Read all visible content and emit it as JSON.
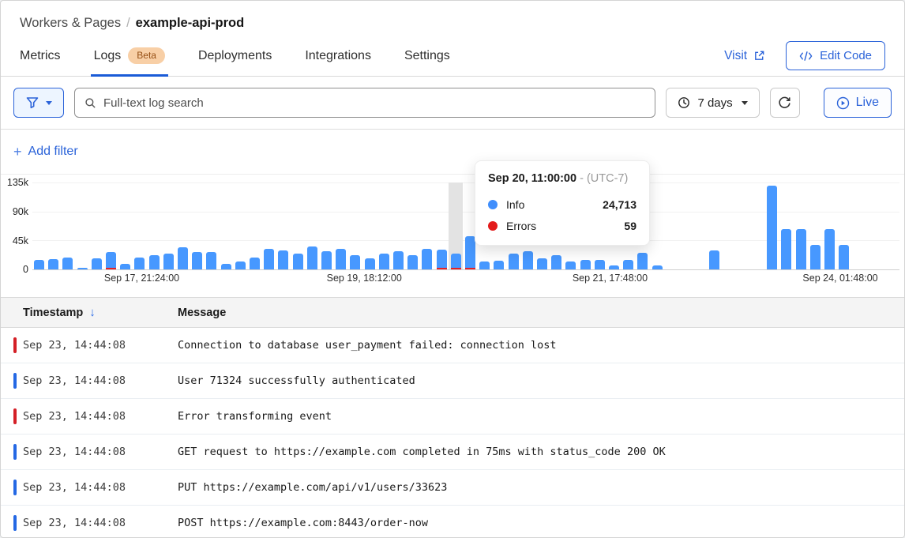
{
  "breadcrumb": {
    "parent": "Workers & Pages",
    "separator": "/",
    "current": "example-api-prod"
  },
  "tabs": {
    "items": [
      {
        "label": "Metrics",
        "active": false
      },
      {
        "label": "Logs",
        "badge": "Beta",
        "active": true
      },
      {
        "label": "Deployments",
        "active": false
      },
      {
        "label": "Integrations",
        "active": false
      },
      {
        "label": "Settings",
        "active": false
      }
    ]
  },
  "header": {
    "visit_label": "Visit",
    "edit_code_label": "Edit Code"
  },
  "filter_bar": {
    "search_placeholder": "Full-text log search",
    "time_range": "7 days",
    "live_label": "Live"
  },
  "add_filter": {
    "plus": "+",
    "label": "Add filter"
  },
  "icons": {
    "sort_desc": "↓"
  },
  "tooltip": {
    "title": "Sep 20, 11:00:00",
    "timezone": "- (UTC-7)",
    "rows": [
      {
        "label": "Info",
        "value": "24,713",
        "color": "#3f8efc"
      },
      {
        "label": "Errors",
        "value": "59",
        "color": "#e31b1b"
      }
    ]
  },
  "chart_data": {
    "type": "bar",
    "title": "Log events over time (7 days)",
    "ylim": [
      0,
      135000
    ],
    "yticks": [
      "135k",
      "90k",
      "45k",
      "0"
    ],
    "grid": true,
    "legend_position": "tooltip-only",
    "xticks": [
      {
        "label": "Sep 17, 21:24:00",
        "pos": 0.125
      },
      {
        "label": "Sep 19, 18:12:00",
        "pos": 0.383
      },
      {
        "label": "Sep 21, 17:48:00",
        "pos": 0.668
      },
      {
        "label": "Sep 24, 01:48:00",
        "pos": 0.935
      }
    ],
    "highlight_index": 29,
    "highlight_label": "Sep 20, 11:00:00",
    "series": [
      {
        "name": "Info",
        "color": "#4798ff",
        "values": [
          15000,
          16000,
          19000,
          2500,
          17000,
          25000,
          8000,
          19000,
          22000,
          24000,
          34000,
          27000,
          27000,
          9000,
          12000,
          18000,
          32000,
          29000,
          24000,
          36000,
          28000,
          32000,
          22000,
          17000,
          25000,
          28000,
          22000,
          32000,
          29000,
          24713,
          50000,
          12000,
          13000,
          25000,
          28000,
          17000,
          22000,
          12000,
          15000,
          15000,
          6000,
          15000,
          26000,
          6000,
          0,
          0,
          0,
          30000,
          0,
          0,
          0,
          130000,
          63000,
          63000,
          38000,
          62000,
          38000,
          0,
          0,
          0
        ]
      },
      {
        "name": "Errors",
        "color": "#e32126",
        "values": [
          0,
          0,
          0,
          0,
          0,
          1500,
          0,
          0,
          0,
          0,
          0,
          0,
          0,
          0,
          0,
          0,
          0,
          0,
          0,
          0,
          0,
          0,
          0,
          0,
          0,
          0,
          0,
          0,
          1600,
          59,
          2100,
          0,
          0,
          0,
          0,
          0,
          0,
          0,
          0,
          0,
          0,
          0,
          0,
          0,
          0,
          0,
          0,
          0,
          0,
          0,
          0,
          0,
          0,
          0,
          0,
          0,
          0,
          0,
          0,
          0
        ]
      }
    ]
  },
  "table": {
    "columns": [
      "Timestamp",
      "Message"
    ],
    "rows": [
      {
        "severity": "error",
        "timestamp": "Sep 23, 14:44:08",
        "message": "Connection to database user_payment failed: connection lost"
      },
      {
        "severity": "info",
        "timestamp": "Sep 23, 14:44:08",
        "message": "User 71324 successfully authenticated"
      },
      {
        "severity": "error",
        "timestamp": "Sep 23, 14:44:08",
        "message": "Error transforming event"
      },
      {
        "severity": "info",
        "timestamp": "Sep 23, 14:44:08",
        "message": "GET request to https://example.com completed in 75ms with status_code 200 OK"
      },
      {
        "severity": "info",
        "timestamp": "Sep 23, 14:44:08",
        "message": "PUT https://example.com/api/v1/users/33623"
      },
      {
        "severity": "info",
        "timestamp": "Sep 23, 14:44:08",
        "message": "POST https://example.com:8443/order-now"
      }
    ]
  },
  "colors": {
    "accent": "#2b63d9",
    "bar_info": "#4798ff",
    "bar_error": "#e32126",
    "marker_info": "#2468e4",
    "marker_error": "#d41f26",
    "badge_bg": "#f8cfa6",
    "badge_text": "#964f15"
  }
}
